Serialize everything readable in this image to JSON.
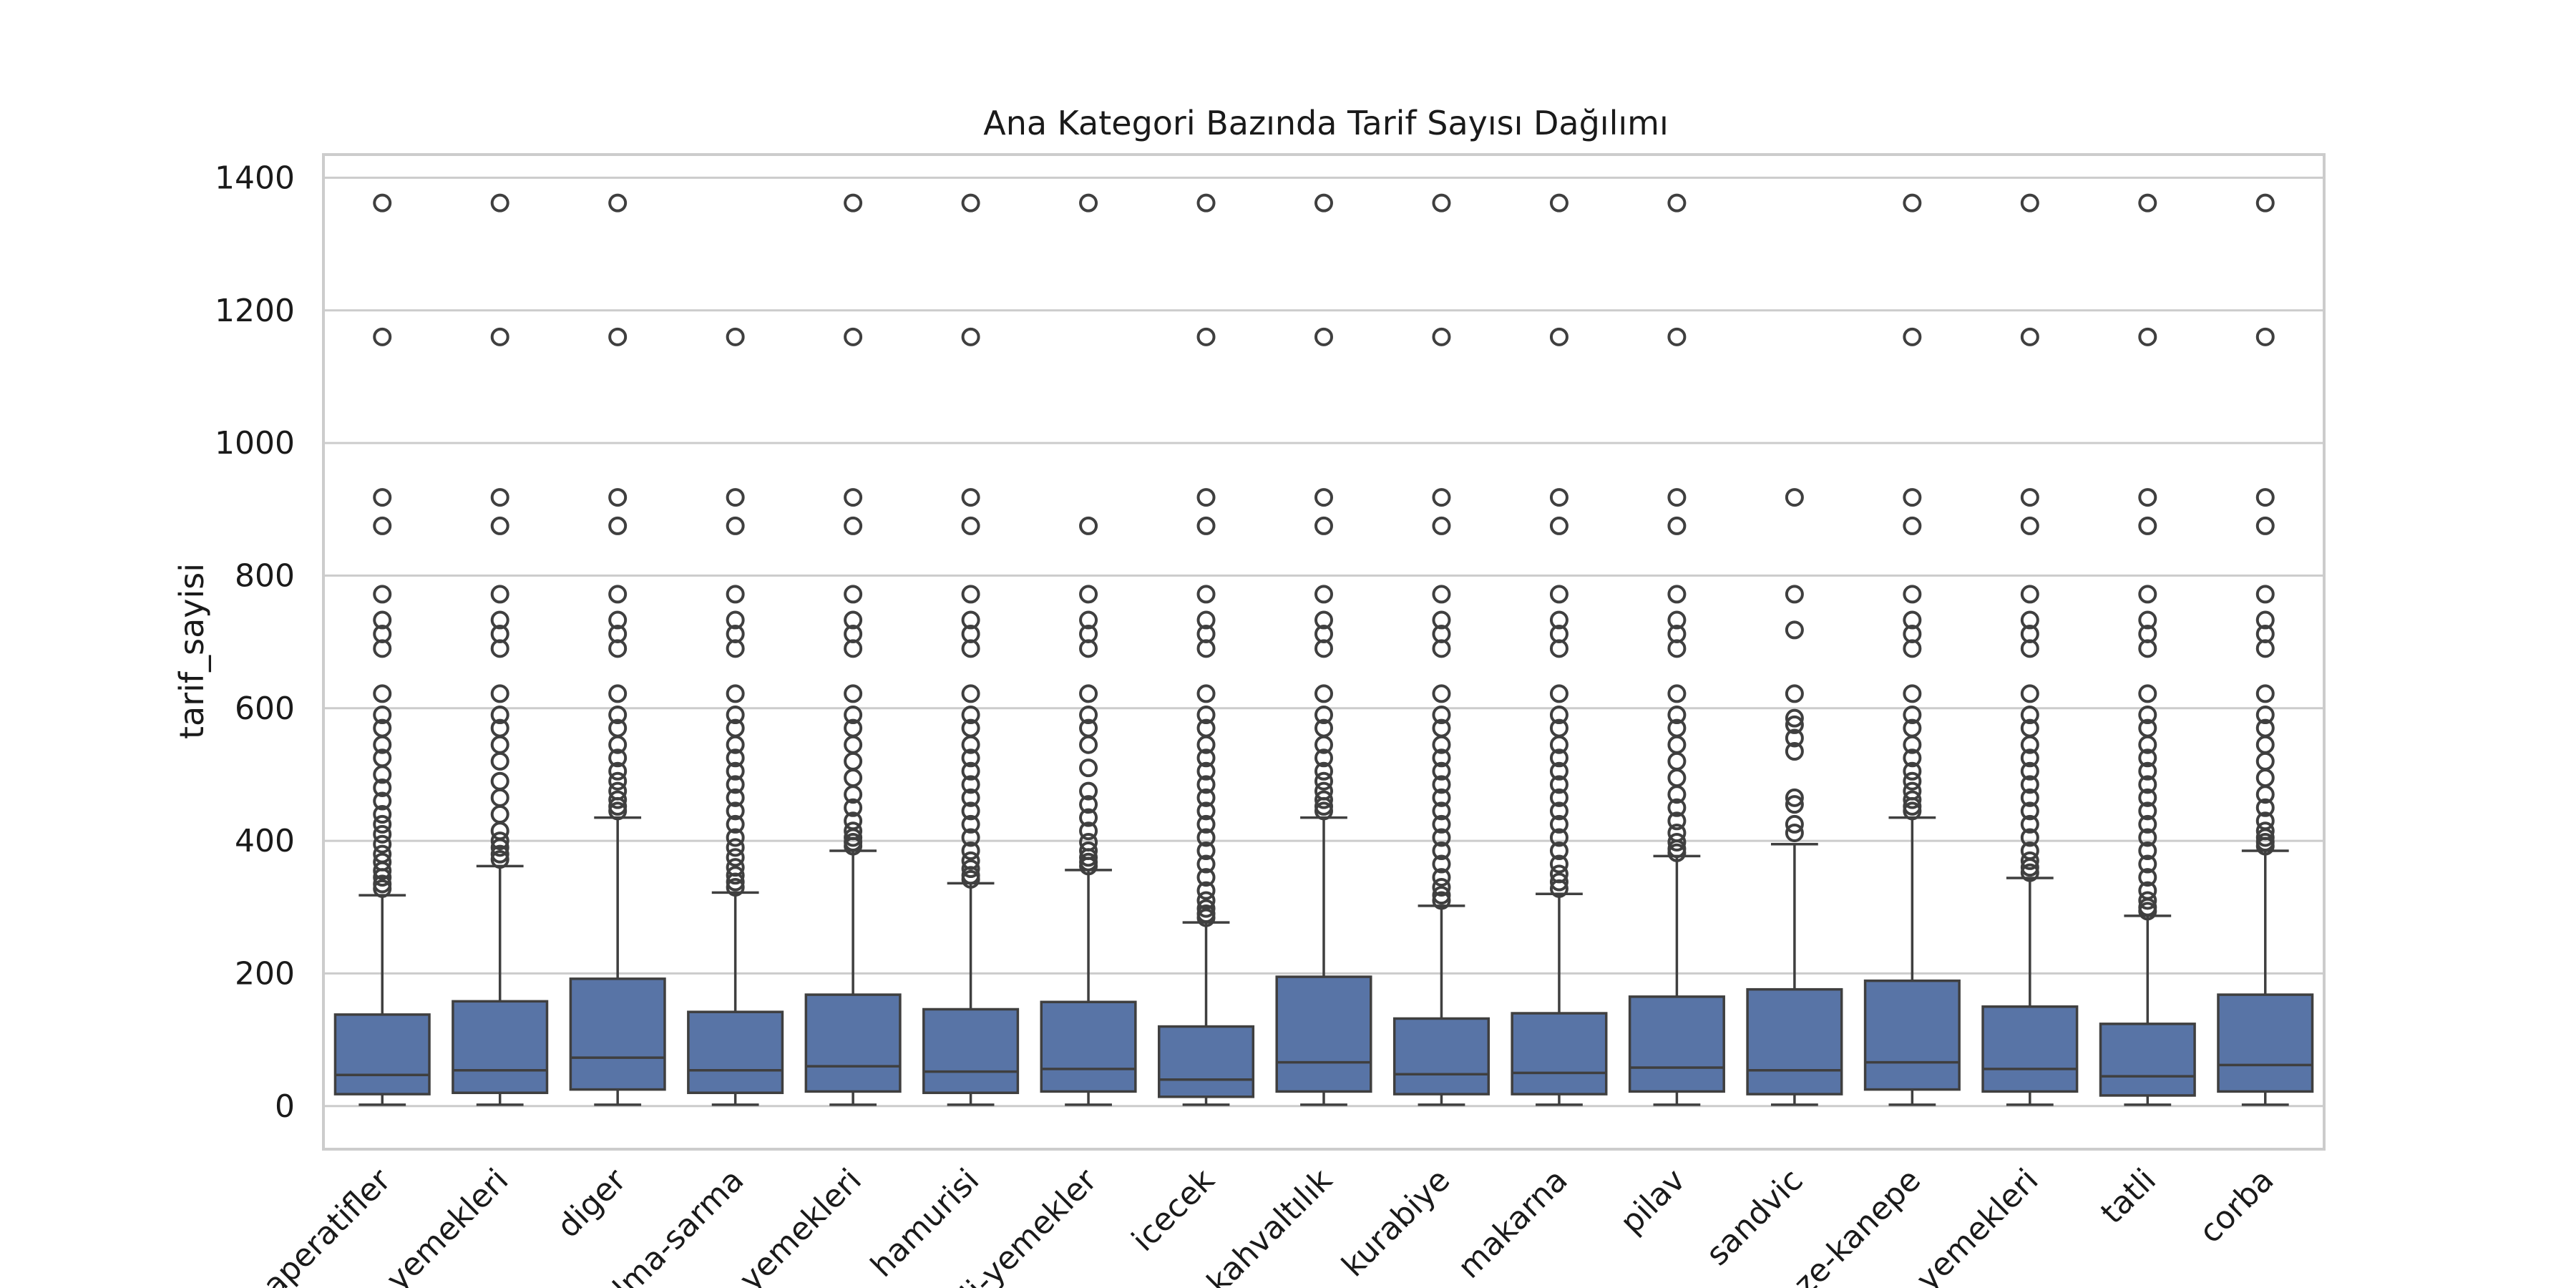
{
  "chart_data": {
    "type": "box",
    "title": "Ana Kategori Bazında Tarif Sayısı Dağılımı",
    "xlabel": "",
    "ylabel": "tarif_sayisi",
    "ylim": [
      -65,
      1435
    ],
    "yticks": [
      0,
      200,
      400,
      600,
      800,
      1000,
      1200,
      1400
    ],
    "grid": true,
    "box_color": "#5874a6",
    "categories": [
      "aperatifler",
      "yemekleri",
      "diger",
      "olma-sarma",
      "yemekleri",
      "hamurisi",
      "li-yemekler",
      "icecek",
      "kahvaltılık",
      "kurabiye",
      "makarna",
      "pilav",
      "sandvic",
      "ze-kanepe",
      "yemekleri",
      "tatli",
      "corba"
    ],
    "boxes": [
      {
        "q1": 18,
        "median": 47,
        "q3": 138,
        "whislo": 2,
        "whishi": 318,
        "fliers": [
          1362,
          1160,
          918,
          875,
          772,
          733,
          712,
          690,
          622,
          590,
          570,
          545,
          525,
          500,
          480,
          460,
          440,
          425,
          410,
          395,
          380,
          368,
          355,
          345,
          335,
          328
        ]
      },
      {
        "q1": 20,
        "median": 54,
        "q3": 158,
        "whislo": 2,
        "whishi": 362,
        "fliers": [
          1362,
          1160,
          918,
          875,
          772,
          733,
          712,
          690,
          622,
          590,
          570,
          545,
          520,
          490,
          465,
          440,
          415,
          400,
          390,
          380,
          372
        ]
      },
      {
        "q1": 25,
        "median": 73,
        "q3": 192,
        "whislo": 2,
        "whishi": 435,
        "fliers": [
          1362,
          1160,
          918,
          875,
          772,
          733,
          712,
          690,
          622,
          590,
          570,
          545,
          525,
          505,
          490,
          475,
          462,
          452,
          445
        ]
      },
      {
        "q1": 20,
        "median": 54,
        "q3": 142,
        "whislo": 2,
        "whishi": 322,
        "fliers": [
          1160,
          918,
          875,
          772,
          733,
          712,
          690,
          622,
          590,
          570,
          545,
          525,
          505,
          485,
          465,
          445,
          425,
          405,
          390,
          375,
          360,
          348,
          338,
          330
        ]
      },
      {
        "q1": 22,
        "median": 60,
        "q3": 168,
        "whislo": 2,
        "whishi": 385,
        "fliers": [
          1362,
          1160,
          918,
          875,
          772,
          733,
          712,
          690,
          622,
          590,
          570,
          545,
          520,
          495,
          470,
          450,
          430,
          415,
          405,
          398,
          392
        ]
      },
      {
        "q1": 20,
        "median": 52,
        "q3": 146,
        "whislo": 2,
        "whishi": 336,
        "fliers": [
          1362,
          1160,
          918,
          875,
          772,
          733,
          712,
          690,
          622,
          590,
          570,
          545,
          525,
          505,
          485,
          465,
          445,
          425,
          405,
          385,
          370,
          358,
          348,
          342
        ]
      },
      {
        "q1": 22,
        "median": 56,
        "q3": 157,
        "whislo": 2,
        "whishi": 356,
        "fliers": [
          1362,
          875,
          772,
          733,
          712,
          690,
          622,
          590,
          570,
          545,
          510,
          475,
          455,
          435,
          415,
          398,
          385,
          375,
          368,
          362
        ]
      },
      {
        "q1": 14,
        "median": 40,
        "q3": 120,
        "whislo": 2,
        "whishi": 277,
        "fliers": [
          1362,
          1160,
          918,
          875,
          772,
          733,
          712,
          690,
          622,
          590,
          570,
          545,
          525,
          505,
          485,
          465,
          445,
          425,
          405,
          385,
          365,
          345,
          325,
          310,
          298,
          290,
          284
        ]
      },
      {
        "q1": 22,
        "median": 66,
        "q3": 195,
        "whislo": 2,
        "whishi": 435,
        "fliers": [
          1362,
          1160,
          918,
          875,
          772,
          733,
          712,
          690,
          622,
          590,
          570,
          545,
          525,
          505,
          490,
          475,
          462,
          452,
          445
        ]
      },
      {
        "q1": 18,
        "median": 48,
        "q3": 132,
        "whislo": 2,
        "whishi": 302,
        "fliers": [
          1362,
          1160,
          918,
          875,
          772,
          733,
          712,
          690,
          622,
          590,
          570,
          545,
          525,
          505,
          485,
          465,
          445,
          425,
          405,
          385,
          365,
          345,
          330,
          318,
          310
        ]
      },
      {
        "q1": 18,
        "median": 50,
        "q3": 140,
        "whislo": 2,
        "whishi": 320,
        "fliers": [
          1362,
          1160,
          918,
          875,
          772,
          733,
          712,
          690,
          622,
          590,
          570,
          545,
          525,
          505,
          485,
          465,
          445,
          425,
          405,
          385,
          365,
          350,
          338,
          328
        ]
      },
      {
        "q1": 22,
        "median": 58,
        "q3": 165,
        "whislo": 2,
        "whishi": 377,
        "fliers": [
          1362,
          1160,
          918,
          875,
          772,
          733,
          712,
          690,
          622,
          590,
          570,
          545,
          520,
          495,
          470,
          450,
          430,
          412,
          398,
          388,
          382
        ]
      },
      {
        "q1": 18,
        "median": 54,
        "q3": 176,
        "whislo": 2,
        "whishi": 395,
        "fliers": [
          918,
          772,
          718,
          622,
          585,
          575,
          555,
          535,
          465,
          455,
          425,
          412
        ]
      },
      {
        "q1": 25,
        "median": 66,
        "q3": 189,
        "whislo": 2,
        "whishi": 435,
        "fliers": [
          1362,
          1160,
          918,
          875,
          772,
          733,
          712,
          690,
          622,
          590,
          570,
          545,
          525,
          505,
          490,
          475,
          462,
          452,
          445
        ]
      },
      {
        "q1": 22,
        "median": 56,
        "q3": 150,
        "whislo": 2,
        "whishi": 344,
        "fliers": [
          1362,
          1160,
          918,
          875,
          772,
          733,
          712,
          690,
          622,
          590,
          570,
          545,
          525,
          505,
          485,
          465,
          445,
          425,
          405,
          385,
          370,
          360,
          352
        ]
      },
      {
        "q1": 16,
        "median": 45,
        "q3": 124,
        "whislo": 2,
        "whishi": 287,
        "fliers": [
          1362,
          1160,
          918,
          875,
          772,
          733,
          712,
          690,
          622,
          590,
          570,
          545,
          525,
          505,
          485,
          465,
          445,
          425,
          405,
          385,
          365,
          345,
          325,
          310,
          300,
          294
        ]
      },
      {
        "q1": 22,
        "median": 62,
        "q3": 168,
        "whislo": 2,
        "whishi": 385,
        "fliers": [
          1362,
          1160,
          918,
          875,
          772,
          733,
          712,
          690,
          622,
          590,
          570,
          545,
          520,
          495,
          470,
          450,
          430,
          415,
          405,
          398,
          392
        ]
      }
    ]
  }
}
